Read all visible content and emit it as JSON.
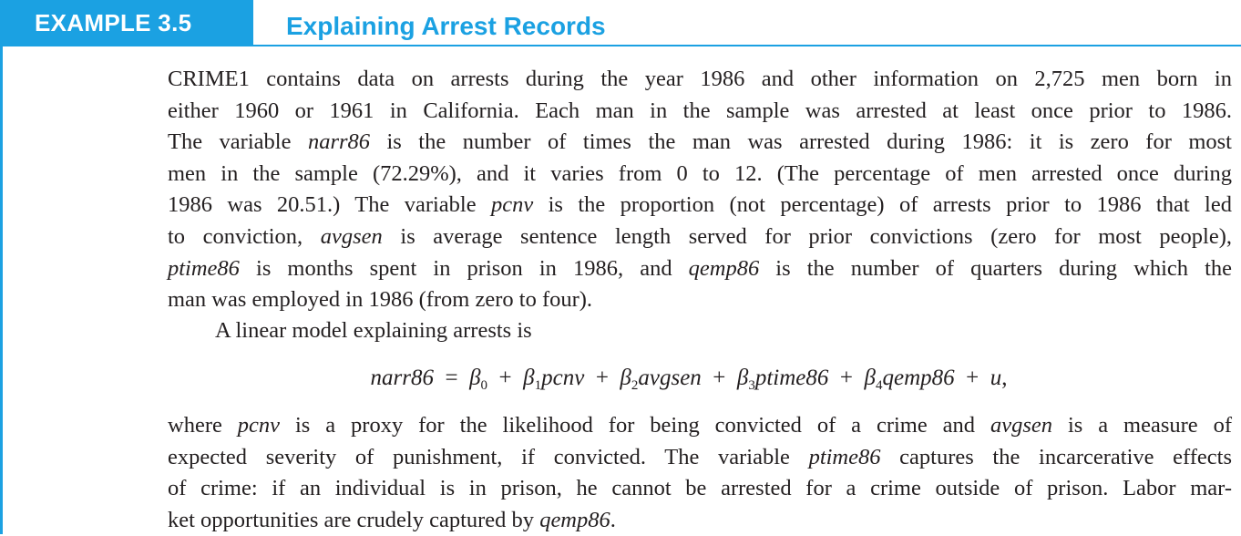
{
  "header": {
    "badge": "EXAMPLE 3.5",
    "title": "Explaining Arrest Records",
    "accent_color": "#1ba1e2"
  },
  "paragraph1": {
    "lines": [
      [
        {
          "t": "CRIME1 contains data on arrests during the year 1986 and other information on 2,725 men born in",
          "i": false
        }
      ],
      [
        {
          "t": "either 1960 or 1961 in California. Each man in the sample was arrested at least once prior to 1986.",
          "i": false
        }
      ],
      [
        {
          "t": "The variable ",
          "i": false
        },
        {
          "t": "narr86",
          "i": true
        },
        {
          "t": " is the number of times the man was arrested during 1986: it is zero for most",
          "i": false
        }
      ],
      [
        {
          "t": "men in the sample (72.29%), and it varies from 0 to 12. (The percentage of men arrested once during",
          "i": false
        }
      ],
      [
        {
          "t": "1986 was 20.51.) The variable ",
          "i": false
        },
        {
          "t": "pcnv",
          "i": true
        },
        {
          "t": " is the proportion (not percentage) of arrests prior to 1986 that led",
          "i": false
        }
      ],
      [
        {
          "t": "to conviction, ",
          "i": false
        },
        {
          "t": "avgsen",
          "i": true
        },
        {
          "t": " is average sentence length served for prior convictions (zero for most people),",
          "i": false
        }
      ],
      [
        {
          "t": "ptime86",
          "i": true
        },
        {
          "t": " is months spent in prison in 1986, and ",
          "i": false
        },
        {
          "t": "qemp86",
          "i": true
        },
        {
          "t": " is the number of quarters during which the",
          "i": false
        }
      ],
      [
        {
          "t": "man was employed in 1986 (from zero to four).",
          "i": false
        }
      ]
    ]
  },
  "paragraph2": {
    "text": "A linear model explaining arrests is"
  },
  "equation": {
    "lhs": "narr86",
    "equals": " = ",
    "terms": [
      {
        "coef": "β",
        "sub": "0",
        "var": ""
      },
      {
        "coef": "β",
        "sub": "1",
        "var": "pcnv"
      },
      {
        "coef": "β",
        "sub": "2",
        "var": "avgsen"
      },
      {
        "coef": "β",
        "sub": "3",
        "var": "ptime86"
      },
      {
        "coef": "β",
        "sub": "4",
        "var": "qemp86"
      },
      {
        "coef": "",
        "sub": "",
        "var": "u"
      }
    ],
    "plus": " + ",
    "trailing": ","
  },
  "paragraph3": {
    "lines": [
      [
        {
          "t": "where ",
          "i": false
        },
        {
          "t": "pcnv",
          "i": true
        },
        {
          "t": " is a proxy for the likelihood for being convicted of a crime and ",
          "i": false
        },
        {
          "t": "avgsen",
          "i": true
        },
        {
          "t": " is a measure of",
          "i": false
        }
      ],
      [
        {
          "t": "expected severity of punishment, if convicted. The variable ",
          "i": false
        },
        {
          "t": "ptime86",
          "i": true
        },
        {
          "t": " captures the incarcerative effects",
          "i": false
        }
      ],
      [
        {
          "t": "of crime: if an individual is in prison, he cannot be arrested for a crime outside of prison. Labor mar-",
          "i": false
        }
      ],
      [
        {
          "t": "ket opportunities are crudely captured by ",
          "i": false
        },
        {
          "t": "qemp86",
          "i": true
        },
        {
          "t": ".",
          "i": false
        }
      ]
    ]
  }
}
